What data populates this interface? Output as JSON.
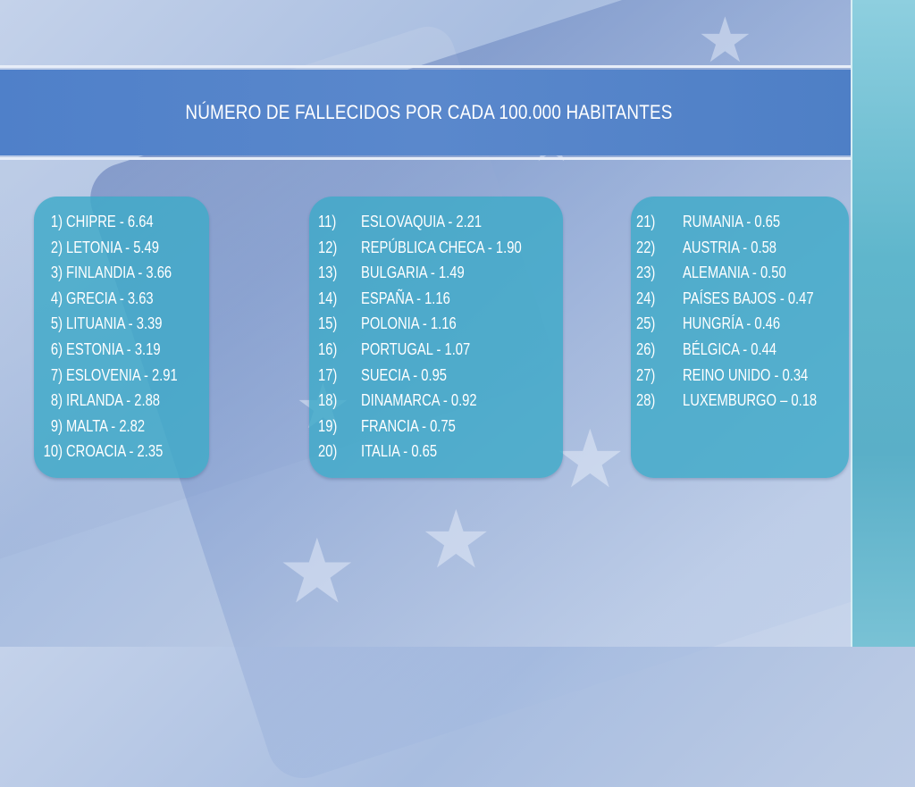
{
  "header": {
    "title": "NÚMERO DE FALLECIDOS POR CADA 100.000 HABITANTES"
  },
  "colors": {
    "band": "#5a88cc",
    "panel": "#3eaac8",
    "text": "#ffffff"
  },
  "column_1": [
    {
      "rank": "1)",
      "entry": "CHIPRE - 6.64"
    },
    {
      "rank": "2)",
      "entry": "LETONIA - 5.49"
    },
    {
      "rank": "3)",
      "entry": "FINLANDIA - 3.66"
    },
    {
      "rank": "4)",
      "entry": "GRECIA - 3.63"
    },
    {
      "rank": "5)",
      "entry": "LITUANIA - 3.39"
    },
    {
      "rank": "6)",
      "entry": "ESTONIA - 3.19"
    },
    {
      "rank": "7)",
      "entry": "ESLOVENIA - 2.91"
    },
    {
      "rank": "8)",
      "entry": "IRLANDA - 2.88"
    },
    {
      "rank": "9)",
      "entry": "MALTA - 2.82"
    },
    {
      "rank": "10)",
      "entry": "CROACIA - 2.35"
    }
  ],
  "column_2": [
    {
      "rank": "11)",
      "entry": "ESLOVAQUIA - 2.21"
    },
    {
      "rank": "12)",
      "entry": "REPÚBLICA CHECA - 1.90"
    },
    {
      "rank": "13)",
      "entry": "BULGARIA - 1.49"
    },
    {
      "rank": "14)",
      "entry": "ESPAÑA - 1.16"
    },
    {
      "rank": "15)",
      "entry": "POLONIA - 1.16"
    },
    {
      "rank": "16)",
      "entry": "PORTUGAL - 1.07"
    },
    {
      "rank": "17)",
      "entry": "SUECIA - 0.95"
    },
    {
      "rank": "18)",
      "entry": "DINAMARCA - 0.92"
    },
    {
      "rank": "19)",
      "entry": "FRANCIA - 0.75"
    },
    {
      "rank": "20)",
      "entry": "ITALIA - 0.65"
    }
  ],
  "column_3": [
    {
      "rank": "21)",
      "entry": "RUMANIA - 0.65"
    },
    {
      "rank": "22)",
      "entry": "AUSTRIA - 0.58"
    },
    {
      "rank": "23)",
      "entry": "ALEMANIA - 0.50"
    },
    {
      "rank": "24)",
      "entry": "PAÍSES BAJOS - 0.47"
    },
    {
      "rank": "25)",
      "entry": "HUNGRÍA - 0.46"
    },
    {
      "rank": "26)",
      "entry": "BÉLGICA - 0.44"
    },
    {
      "rank": "27)",
      "entry": "REINO UNIDO - 0.34"
    },
    {
      "rank": "28)",
      "entry": "LUXEMBURGO   –   0.18"
    }
  ]
}
